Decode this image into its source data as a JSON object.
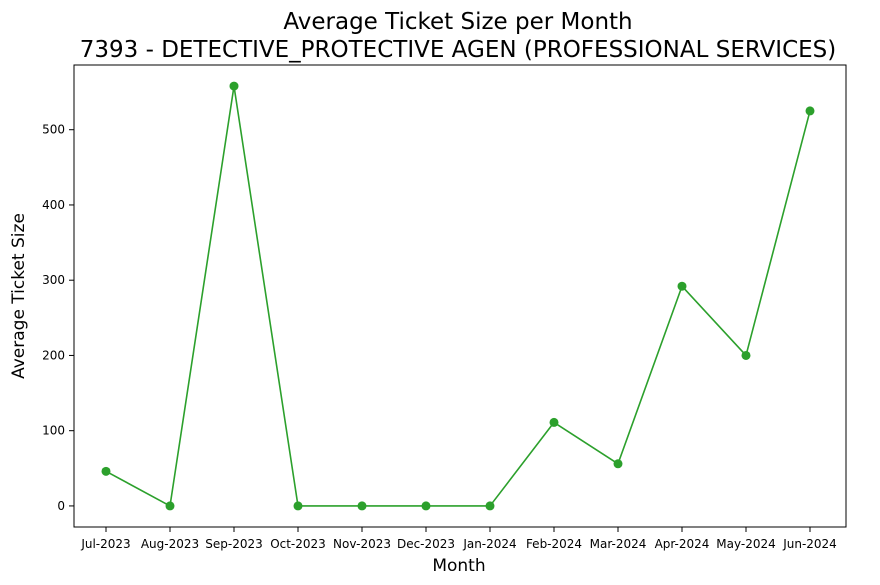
{
  "chart_data": {
    "type": "line",
    "title": "Average Ticket Size per Month",
    "subtitle": "7393 - DETECTIVE_PROTECTIVE AGEN (PROFESSIONAL SERVICES)",
    "xlabel": "Month",
    "ylabel": "Average Ticket Size",
    "categories": [
      "Jul-2023",
      "Aug-2023",
      "Sep-2023",
      "Oct-2023",
      "Nov-2023",
      "Dec-2023",
      "Jan-2024",
      "Feb-2024",
      "Mar-2024",
      "Apr-2024",
      "May-2024",
      "Jun-2024"
    ],
    "series": [
      {
        "values": [
          46,
          0,
          558,
          0,
          0,
          0,
          0,
          111,
          56,
          292,
          200,
          525
        ],
        "color": "#2ca02c"
      }
    ],
    "ylim": [
      -28,
      586
    ],
    "yticks": [
      0,
      100,
      200,
      300,
      400,
      500
    ],
    "grid": false,
    "legend": "none"
  }
}
